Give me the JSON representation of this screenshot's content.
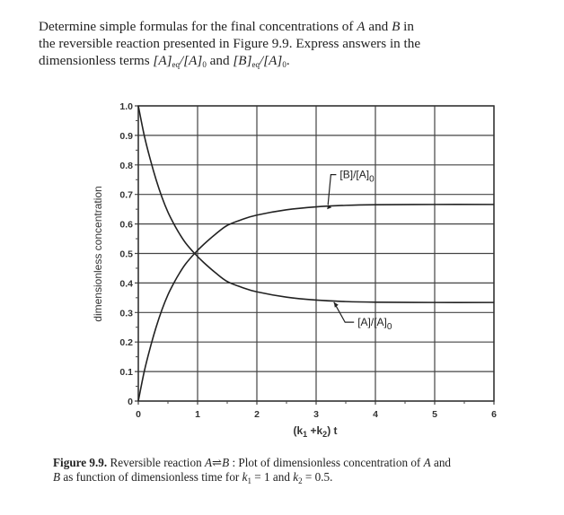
{
  "problem": {
    "text_line1": "Determine simple formulas for the final concentrations of ",
    "A": "A",
    "and": " and ",
    "B": "B",
    "in": " in",
    "text_line2": "the reversible reaction presented in Figure 9.9. Express answers in the",
    "text_line3_prefix": "dimensionless terms ",
    "term1": "[A]",
    "term1_sub": "eq",
    "term1_den": "/[A]",
    "term1_den_sub": "0",
    "and2": " and ",
    "term2": "[B]",
    "term2_sub": "eq",
    "term2_den": "/[A]",
    "term2_den_sub": "0",
    "end": "."
  },
  "caption": {
    "label": "Figure 9.9.",
    "text1": " Reversible reaction ",
    "reaction_A": "A",
    "arrow": "⇌",
    "reaction_B": "B",
    "text2": " : Plot of dimensionless concentration of ",
    "A": "A",
    "text3": " and",
    "B": "B",
    "text4": " as function of dimensionless time for ",
    "k1": "k",
    "k1_sub": "1",
    "k1_val": " = 1 and ",
    "k2": "k",
    "k2_sub": "2",
    "k2_val": " = 0.5."
  },
  "chart_data": {
    "type": "line",
    "title": "",
    "xlabel": "(k1 + k2) t",
    "ylabel": "dimensionless concentration",
    "xlim": [
      0,
      6
    ],
    "ylim": [
      0,
      1.0
    ],
    "grid": true,
    "x_ticks": [
      "0",
      "1",
      "2",
      "3",
      "4",
      "5",
      "6"
    ],
    "y_ticks": [
      "0",
      "0.1",
      "0.2",
      "0.3",
      "0.4",
      "0.5",
      "0.6",
      "0.7",
      "0.8",
      "0.9",
      "1.0"
    ],
    "x": [
      0,
      0.1,
      0.2,
      0.3,
      0.4,
      0.5,
      0.6,
      0.7,
      0.8,
      0.95,
      1.1,
      1.3,
      1.5,
      1.75,
      2.0,
      2.5,
      3.0,
      3.5,
      4.0,
      5.0,
      6.0
    ],
    "series": [
      {
        "name": "[A]/[A]0",
        "values": [
          1.0,
          0.9,
          0.82,
          0.75,
          0.69,
          0.64,
          0.6,
          0.565,
          0.535,
          0.5,
          0.47,
          0.435,
          0.405,
          0.385,
          0.37,
          0.352,
          0.342,
          0.337,
          0.335,
          0.334,
          0.334
        ]
      },
      {
        "name": "[B]/[A]0",
        "values": [
          0.0,
          0.1,
          0.18,
          0.25,
          0.31,
          0.36,
          0.4,
          0.435,
          0.465,
          0.5,
          0.53,
          0.565,
          0.595,
          0.615,
          0.63,
          0.648,
          0.658,
          0.663,
          0.665,
          0.666,
          0.666
        ]
      }
    ],
    "annotations": [
      {
        "text": "[B]/[A]",
        "sub": "0",
        "x": 3.4,
        "y": 0.755,
        "arrow_to": [
          3.2,
          0.665
        ]
      },
      {
        "text": "[A]/[A]",
        "sub": "0",
        "x": 3.7,
        "y": 0.255,
        "arrow_to": [
          3.3,
          0.335
        ]
      }
    ]
  }
}
